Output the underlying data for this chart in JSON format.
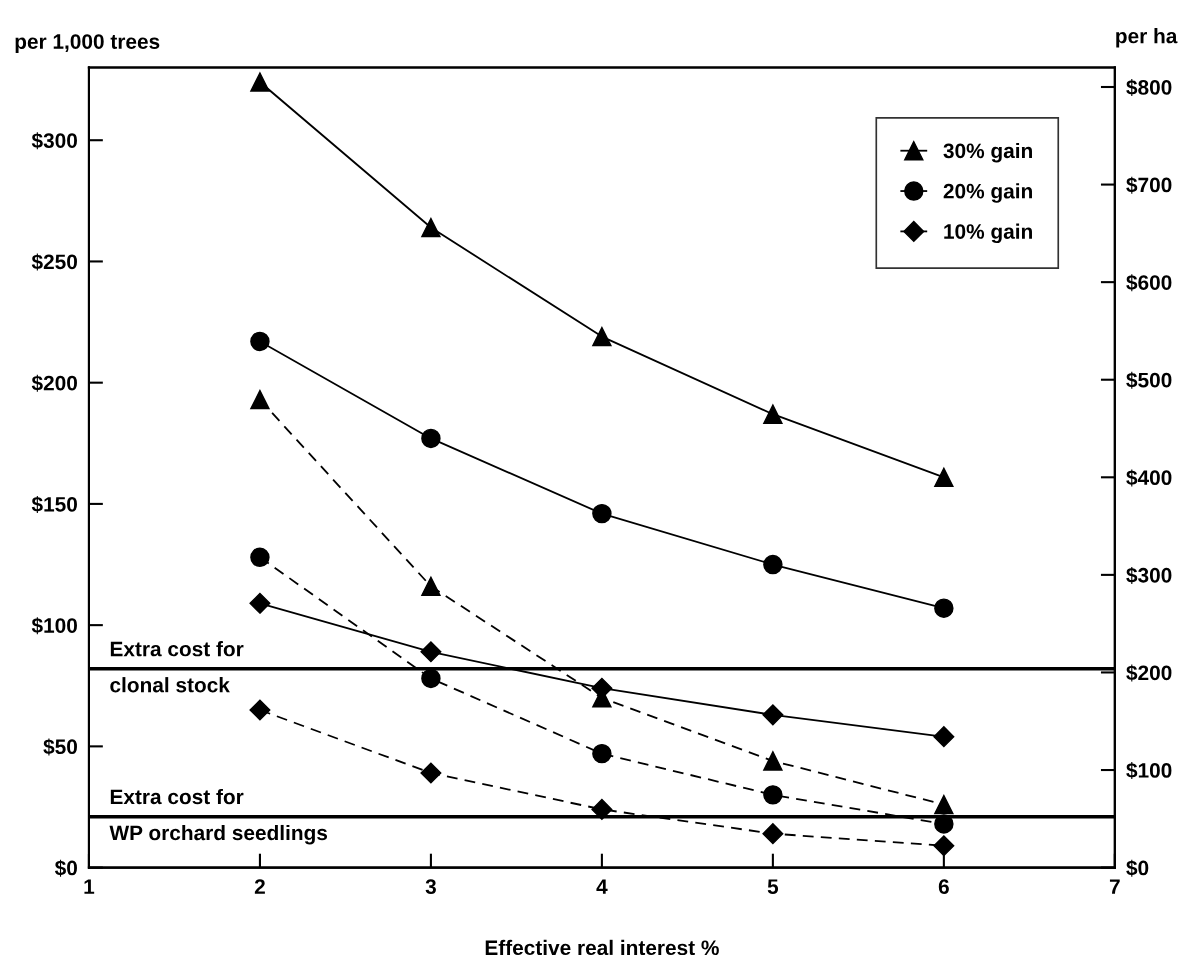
{
  "chart_data": {
    "type": "line",
    "xlabel": "Effective real interest %",
    "ylabel": "per 1,000 trees",
    "y2label": "per ha",
    "x": [
      2,
      3,
      4,
      5,
      6
    ],
    "series": [
      {
        "name": "30% gain",
        "color": "#000000",
        "marker": "triangle",
        "line_style": "solid",
        "values": [
          324,
          264,
          219,
          187,
          161
        ]
      },
      {
        "name": "20% gain",
        "color": "#000000",
        "marker": "circle",
        "line_style": "solid",
        "values": [
          217,
          177,
          146,
          125,
          107
        ]
      },
      {
        "name": "10% gain",
        "color": "#000000",
        "marker": "diamond",
        "line_style": "solid",
        "values": [
          109,
          89,
          74,
          63,
          54
        ]
      },
      {
        "color": "#000000",
        "marker": "triangle",
        "line_style": "dashed",
        "values": [
          193,
          116,
          70,
          44,
          26
        ]
      },
      {
        "color": "#000000",
        "marker": "circle",
        "line_style": "dashed",
        "values": [
          128,
          78,
          47,
          30,
          18
        ]
      },
      {
        "color": "#000000",
        "marker": "diamond",
        "line_style": "dashed",
        "values": [
          65,
          39,
          24,
          14,
          9
        ]
      }
    ],
    "xlim": [
      1,
      7
    ],
    "xticks": [
      1,
      2,
      3,
      4,
      5,
      6,
      7
    ],
    "ylim": [
      0,
      330
    ],
    "yticks": [
      {
        "value": 0,
        "label": "$0"
      },
      {
        "value": 50,
        "label": "$50"
      },
      {
        "value": 100,
        "label": "$100"
      },
      {
        "value": 150,
        "label": "$150"
      },
      {
        "value": 200,
        "label": "$200"
      },
      {
        "value": 250,
        "label": "$250"
      },
      {
        "value": 300,
        "label": "$300"
      }
    ],
    "y2lim": [
      0,
      820
    ],
    "y2ticks": [
      {
        "value": 0,
        "label": "$0"
      },
      {
        "value": 100,
        "label": "$100"
      },
      {
        "value": 200,
        "label": "$200"
      },
      {
        "value": 300,
        "label": "$300"
      },
      {
        "value": 400,
        "label": "$400"
      },
      {
        "value": 500,
        "label": "$500"
      },
      {
        "value": 600,
        "label": "$600"
      },
      {
        "value": 700,
        "label": "$700"
      },
      {
        "value": 800,
        "label": "$800"
      }
    ],
    "ref_lines": [
      {
        "axis": "y",
        "value": 82,
        "label": "Extra cost for\nclonal stock",
        "color": "#000000"
      },
      {
        "axis": "y",
        "value": 21,
        "label": "Extra cost for\nWP orchard seedlings",
        "color": "#000000"
      }
    ],
    "grid": false,
    "legend": "top right"
  }
}
